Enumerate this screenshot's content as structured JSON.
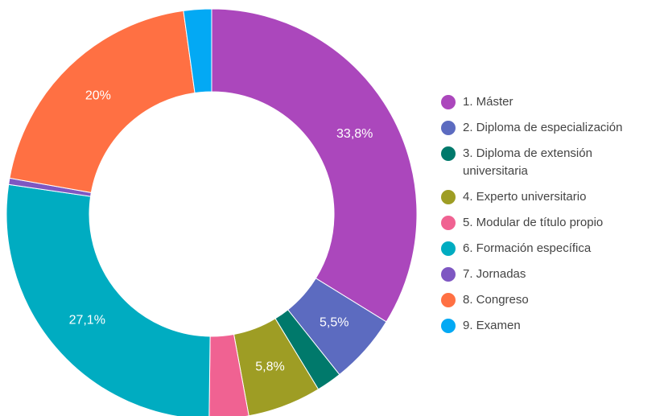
{
  "chart_data": {
    "type": "donut",
    "categories": [
      "1. Máster",
      "2. Diploma de especialización",
      "3. Diploma de extensión universitaria",
      "4. Experto universitario",
      "5. Modular de título propio",
      "6. Formación específica",
      "7. Jornadas",
      "8. Congreso",
      "9. Examen"
    ],
    "values": [
      33.8,
      5.5,
      2.0,
      5.8,
      3.1,
      27.1,
      0.5,
      20,
      2.2
    ],
    "value_labels": [
      "33,8%",
      "5,5%",
      null,
      "5,8%",
      null,
      "27,1%",
      null,
      "20%",
      null
    ],
    "colors": [
      "#ab47bc",
      "#5c6bc0",
      "#00796b",
      "#9e9d24",
      "#f06292",
      "#00acc1",
      "#7e57c2",
      "#ff7043",
      "#03a9f4"
    ],
    "legend": "right"
  }
}
